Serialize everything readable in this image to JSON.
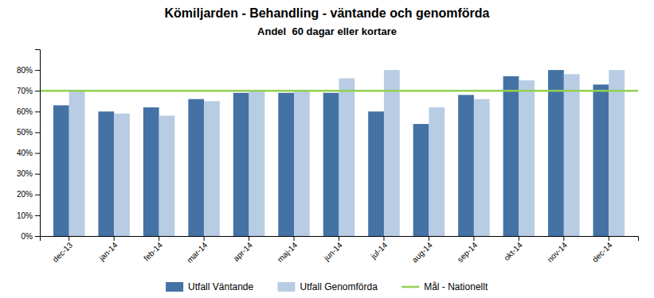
{
  "chart_data": {
    "type": "bar",
    "title": "Kömiljarden - Behandling - väntande och genomförda",
    "subtitle": "Andel  60 dagar eller kortare",
    "categories": [
      "dec-13",
      "jan-14",
      "feb-14",
      "mar-14",
      "apr-14",
      "maj-14",
      "jun-14",
      "jul-14",
      "aug-14",
      "sep-14",
      "okt-14",
      "nov-14",
      "dec-14"
    ],
    "series": [
      {
        "name": "Utfall Väntande",
        "color": "#4472A4",
        "values": [
          0.63,
          0.6,
          0.62,
          0.66,
          0.69,
          0.69,
          0.69,
          0.6,
          0.54,
          0.68,
          0.77,
          0.8,
          0.73
        ]
      },
      {
        "name": "Utfall Genomförda",
        "color": "#B8CCE4",
        "values": [
          0.7,
          0.59,
          0.58,
          0.65,
          0.7,
          0.7,
          0.76,
          0.8,
          0.62,
          0.66,
          0.75,
          0.78,
          0.8
        ]
      }
    ],
    "target_line": {
      "name": "Mål - Nationellt",
      "value": 0.7,
      "color": "#92D050"
    },
    "ylim": [
      0,
      0.9
    ],
    "yticks": [
      {
        "value": 0.0,
        "label": "0%"
      },
      {
        "value": 0.1,
        "label": "10%"
      },
      {
        "value": 0.2,
        "label": "20%"
      },
      {
        "value": 0.3,
        "label": "30%"
      },
      {
        "value": 0.4,
        "label": "40%"
      },
      {
        "value": 0.5,
        "label": "50%"
      },
      {
        "value": 0.6,
        "label": "60%"
      },
      {
        "value": 0.7,
        "label": "70%"
      },
      {
        "value": 0.8,
        "label": "80%"
      }
    ],
    "grid": false,
    "legend": "bottom"
  }
}
